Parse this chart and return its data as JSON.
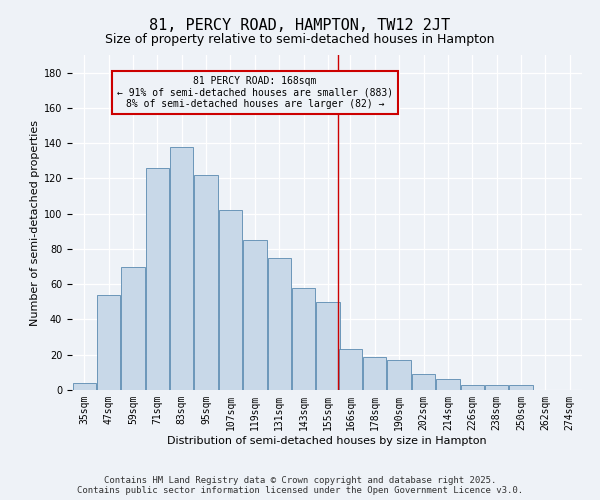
{
  "title": "81, PERCY ROAD, HAMPTON, TW12 2JT",
  "subtitle": "Size of property relative to semi-detached houses in Hampton",
  "xlabel": "Distribution of semi-detached houses by size in Hampton",
  "ylabel": "Number of semi-detached properties",
  "footer": "Contains HM Land Registry data © Crown copyright and database right 2025.\nContains public sector information licensed under the Open Government Licence v3.0.",
  "bins": [
    "35sqm",
    "47sqm",
    "59sqm",
    "71sqm",
    "83sqm",
    "95sqm",
    "107sqm",
    "119sqm",
    "131sqm",
    "143sqm",
    "155sqm",
    "166sqm",
    "178sqm",
    "190sqm",
    "202sqm",
    "214sqm",
    "226sqm",
    "238sqm",
    "250sqm",
    "262sqm",
    "274sqm"
  ],
  "bin_edges": [
    35,
    47,
    59,
    71,
    83,
    95,
    107,
    119,
    131,
    143,
    155,
    166,
    178,
    190,
    202,
    214,
    226,
    238,
    250,
    262,
    274
  ],
  "counts": [
    4,
    54,
    70,
    126,
    138,
    122,
    102,
    85,
    75,
    58,
    50,
    23,
    19,
    17,
    9,
    6,
    3,
    3,
    3,
    0
  ],
  "bar_color": "#c8d8e8",
  "bar_edge_color": "#5a8ab0",
  "vline_x": 166,
  "vline_color": "#cc0000",
  "annotation_text": "81 PERCY ROAD: 168sqm\n← 91% of semi-detached houses are smaller (883)\n8% of semi-detached houses are larger (82) →",
  "annotation_box_color": "#cc0000",
  "annotation_text_color": "#000000",
  "ylim": [
    0,
    190
  ],
  "yticks": [
    0,
    20,
    40,
    60,
    80,
    100,
    120,
    140,
    160,
    180
  ],
  "bg_color": "#eef2f7",
  "grid_color": "#ffffff",
  "title_fontsize": 11,
  "subtitle_fontsize": 9,
  "axis_label_fontsize": 8,
  "tick_fontsize": 7,
  "footer_fontsize": 6.5
}
